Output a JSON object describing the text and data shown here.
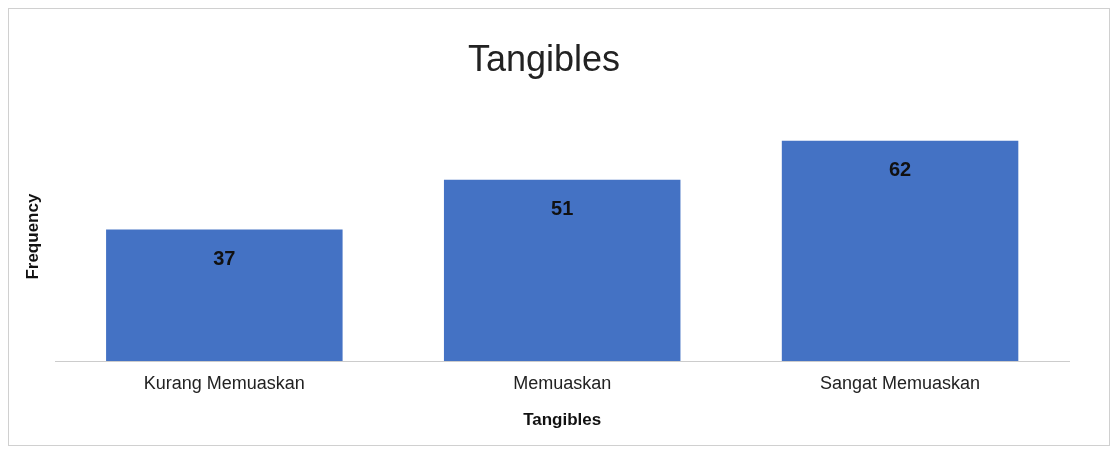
{
  "chart_data": {
    "type": "bar",
    "title": "Tangibles",
    "xlabel": "Tangibles",
    "ylabel": "Frequency",
    "categories": [
      "Kurang Memuaskan",
      "Memuaskan",
      "Sangat Memuaskan"
    ],
    "values": [
      37,
      51,
      62
    ],
    "color": "#4472c4",
    "data_labels": true,
    "grid": false,
    "legend": false
  }
}
